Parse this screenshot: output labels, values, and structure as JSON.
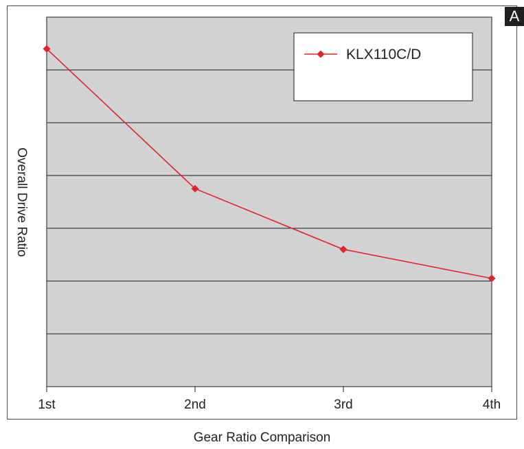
{
  "badge": "A",
  "caption": "Gear Ratio Comparison",
  "colors": {
    "plot_background": "#d1d2d4",
    "series": "#e3232a",
    "gridline": "#1a1a1a"
  },
  "chart_data": {
    "type": "line",
    "title": "",
    "xlabel": "",
    "ylabel": "Overall Drive Ratio",
    "categories": [
      "1st",
      "2nd",
      "3rd",
      "4th"
    ],
    "ylim": [
      0,
      7
    ],
    "yticks_labeled": false,
    "grid": true,
    "legend": "top-right",
    "series": [
      {
        "name": "KLX110C/D",
        "marker": "diamond",
        "values": [
          6.4,
          3.75,
          2.6,
          2.05
        ]
      }
    ]
  }
}
